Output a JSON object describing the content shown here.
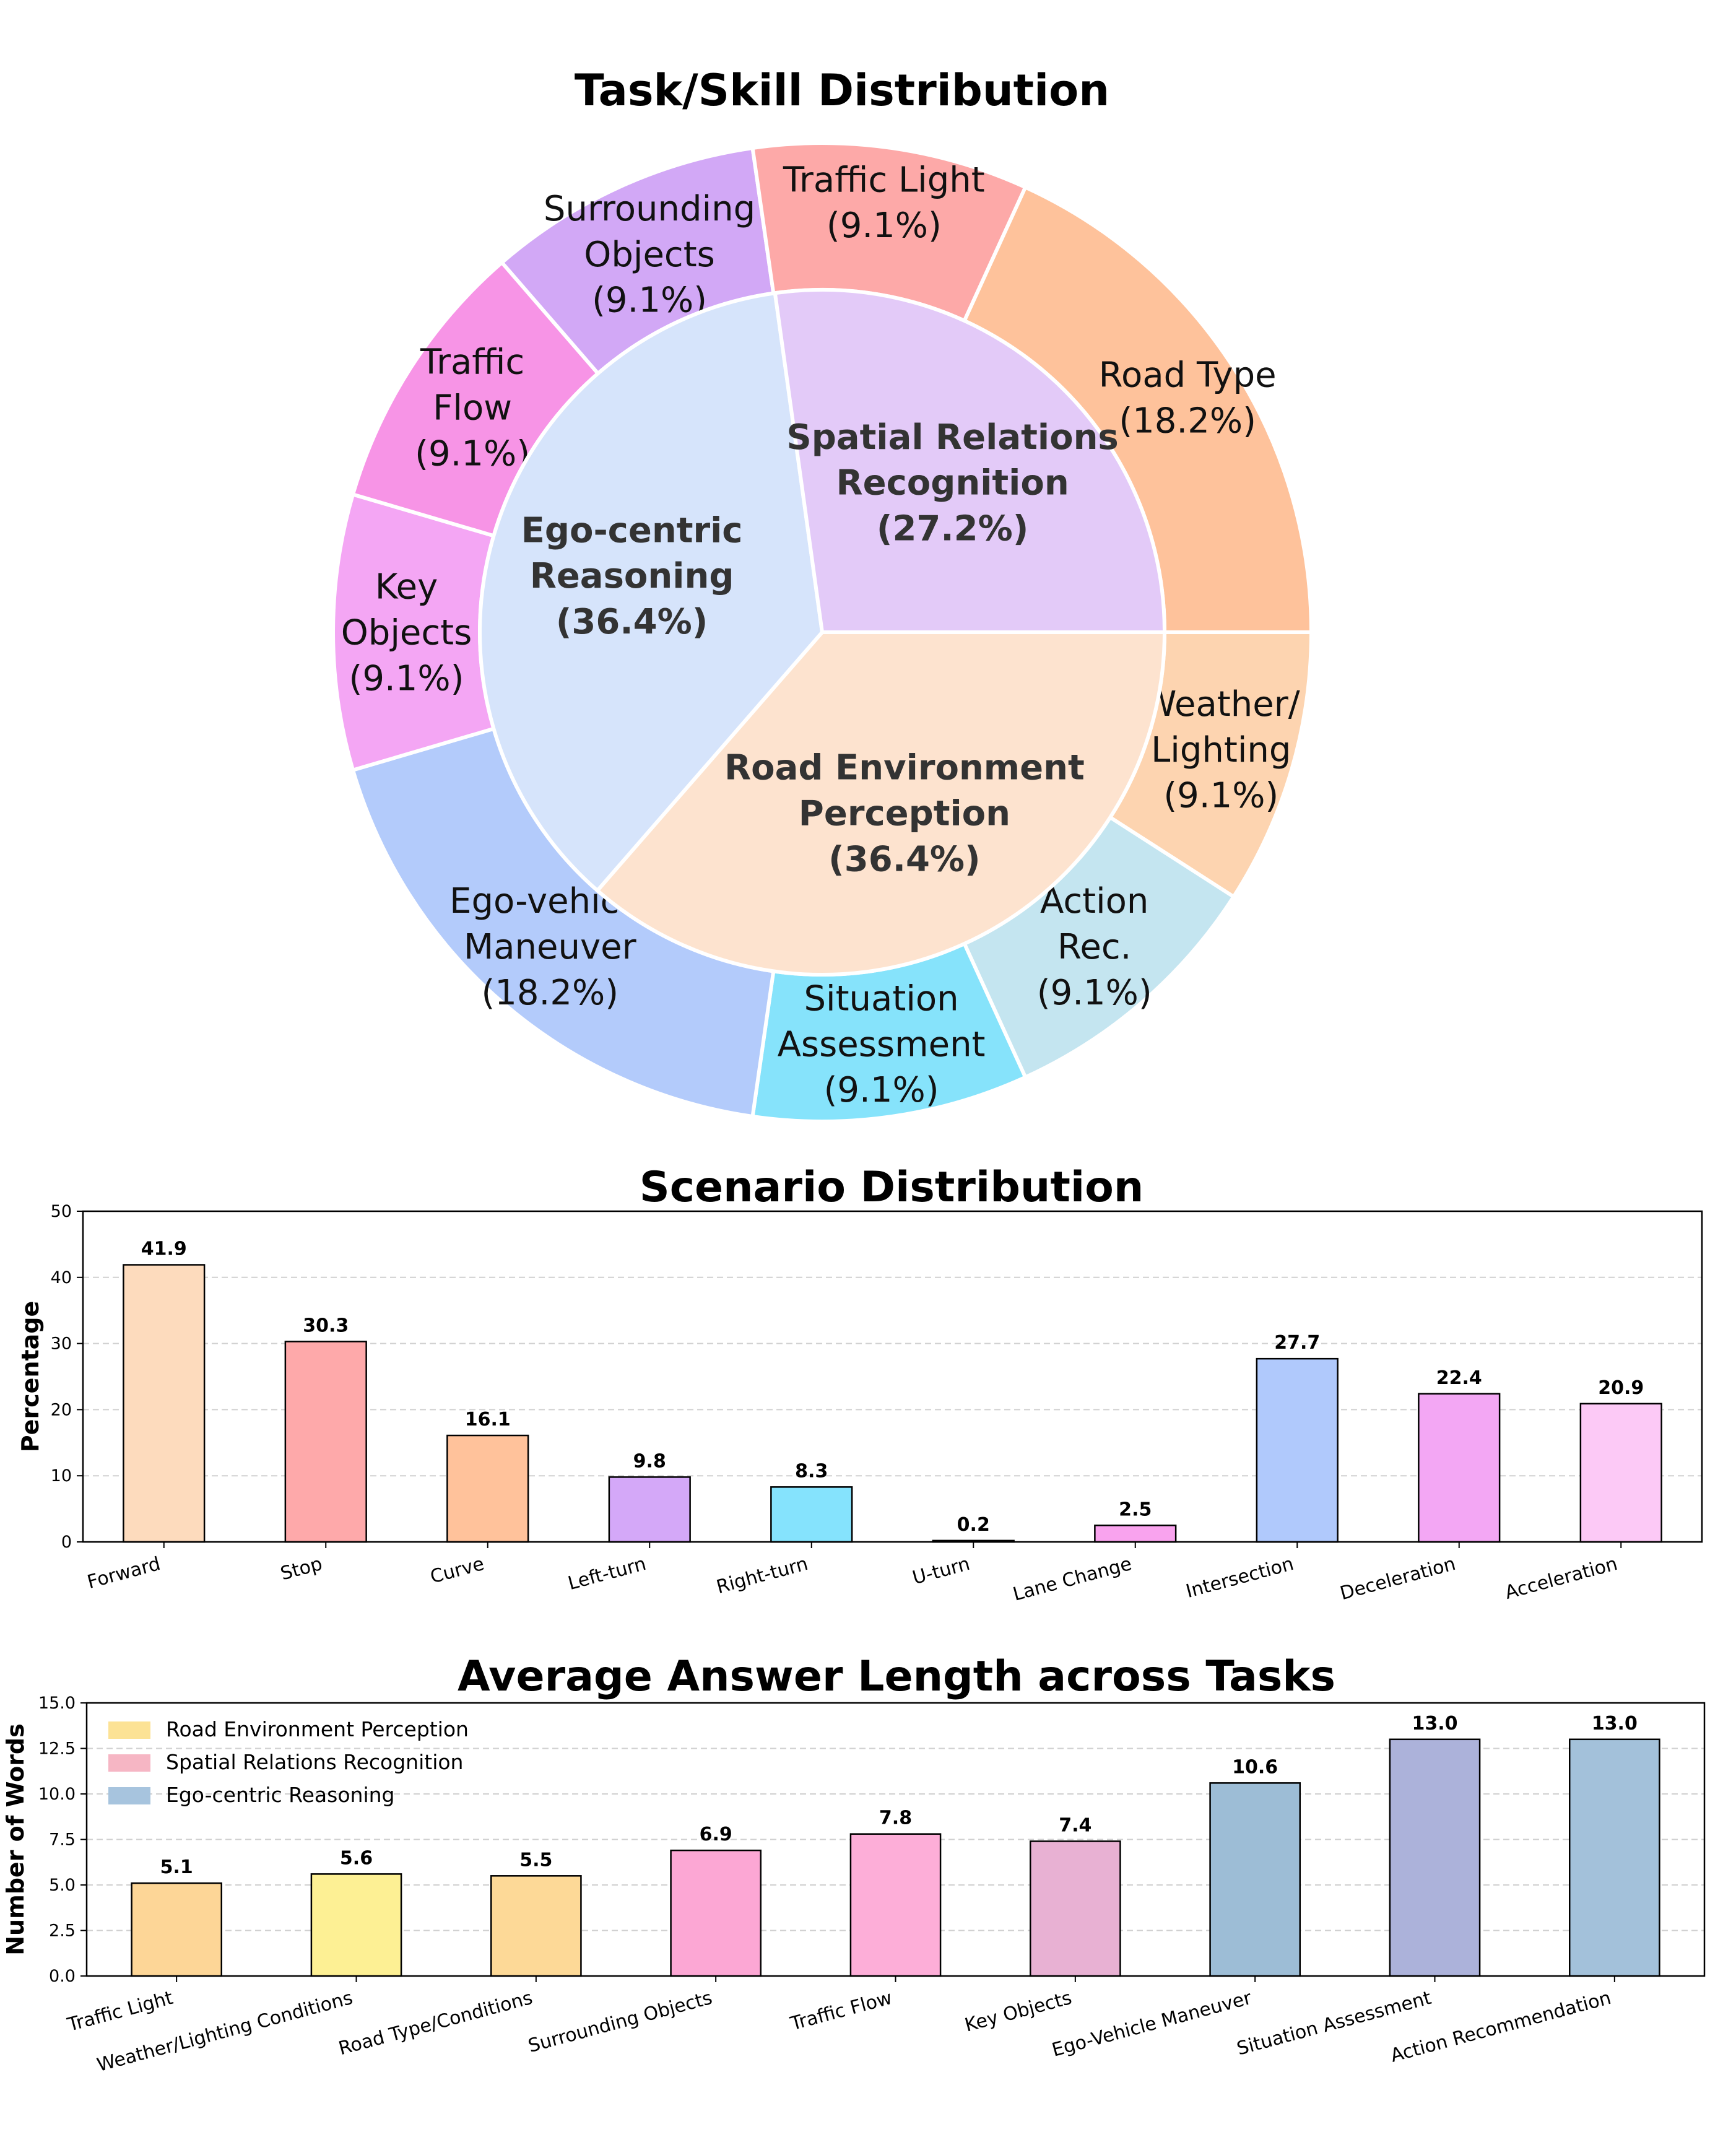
{
  "chart_data": [
    {
      "type": "pie",
      "title": "Task/Skill Distribution",
      "inner": [
        {
          "lines": [
            "Road Environment",
            "Perception",
            "(36.4%)"
          ],
          "value": 36.4,
          "color": "#fde3cf"
        },
        {
          "lines": [
            "Ego-centric",
            "Reasoning",
            "(36.4%)"
          ],
          "value": 36.4,
          "color": "#d6e4fb"
        },
        {
          "lines": [
            "Spatial Relations",
            "Recognition",
            "(27.2%)"
          ],
          "value": 27.2,
          "color": "#e3caf8"
        }
      ],
      "outer": [
        {
          "lines": [
            "Weather/",
            "Lighting",
            "(9.1%)"
          ],
          "value": 9.1,
          "color": "#fdd4b0"
        },
        {
          "lines": [
            "Action",
            "Rec.",
            "(9.1%)"
          ],
          "value": 9.1,
          "color": "#c4e5f0"
        },
        {
          "lines": [
            "Situation",
            "Assessment",
            "(9.1%)"
          ],
          "value": 9.1,
          "color": "#86e3fb"
        },
        {
          "lines": [
            "Ego-vehicle",
            "Maneuver",
            "(18.2%)"
          ],
          "value": 18.2,
          "color": "#b3cbfb"
        },
        {
          "lines": [
            "Key",
            "Objects",
            "(9.1%)"
          ],
          "value": 9.1,
          "color": "#f4a6f4"
        },
        {
          "lines": [
            "Traffic",
            "Flow",
            "(9.1%)"
          ],
          "value": 9.1,
          "color": "#f794e6"
        },
        {
          "lines": [
            "Surrounding",
            "Objects",
            "(9.1%)"
          ],
          "value": 9.1,
          "color": "#d2a8f6"
        },
        {
          "lines": [
            "Traffic Light",
            "(9.1%)"
          ],
          "value": 9.1,
          "color": "#fda9a8"
        },
        {
          "lines": [
            "Road Type",
            "(18.2%)"
          ],
          "value": 18.2,
          "color": "#fec29b"
        }
      ]
    },
    {
      "type": "bar",
      "title": "Scenario Distribution",
      "ylabel": "Percentage",
      "ylim": [
        0,
        50
      ],
      "yticks": [
        "0",
        "10",
        "20",
        "30",
        "40",
        "50"
      ],
      "categories": [
        "Forward",
        "Stop",
        "Curve",
        "Left-turn",
        "Right-turn",
        "U-turn",
        "Lane Change",
        "Intersection",
        "Deceleration",
        "Acceleration"
      ],
      "values": [
        41.9,
        30.3,
        16.1,
        9.8,
        8.3,
        0.2,
        2.5,
        27.7,
        22.4,
        20.9
      ],
      "labels": [
        "41.9",
        "30.3",
        "16.1",
        "9.8",
        "8.3",
        "0.2",
        "2.5",
        "27.7",
        "22.4",
        "20.9"
      ],
      "colors": [
        "#fddbbd",
        "#fea9aa",
        "#ffc29b",
        "#d4a8f8",
        "#85e3fd",
        "#d7e4fc",
        "#f9a3ee",
        "#b0c9fc",
        "#f3a7f4",
        "#fcc9f6"
      ],
      "grid": true
    },
    {
      "type": "bar",
      "title": "Average Answer Length across Tasks",
      "ylabel": "Number of Words",
      "ylim": [
        0,
        15
      ],
      "yticks": [
        "0.0",
        "2.5",
        "5.0",
        "7.5",
        "10.0",
        "12.5",
        "15.0"
      ],
      "categories": [
        "Traffic Light",
        "Weather/Lighting Conditions",
        "Road Type/Conditions",
        "Surrounding Objects",
        "Traffic Flow",
        "Key Objects",
        "Ego-Vehicle Maneuver",
        "Situation Assessment",
        "Action Recommendation"
      ],
      "values": [
        5.1,
        5.6,
        5.5,
        6.9,
        7.8,
        7.4,
        10.6,
        13.0,
        13.0
      ],
      "labels": [
        "5.1",
        "5.6",
        "5.5",
        "6.9",
        "7.8",
        "7.4",
        "10.6",
        "13.0",
        "13.0"
      ],
      "colors": [
        "#fdd697",
        "#fdf094",
        "#fdd997",
        "#fca7d4",
        "#fdaed8",
        "#e8b1d3",
        "#9dbdd6",
        "#acb2da",
        "#a3c1da"
      ],
      "legend": [
        {
          "name": "Road Environment Perception",
          "color": "#fce295"
        },
        {
          "name": "Spatial Relations Recognition",
          "color": "#f6b6c4"
        },
        {
          "name": "Ego-centric Reasoning",
          "color": "#a7c4de"
        }
      ],
      "legend_position": "top-left",
      "grid": true
    }
  ]
}
